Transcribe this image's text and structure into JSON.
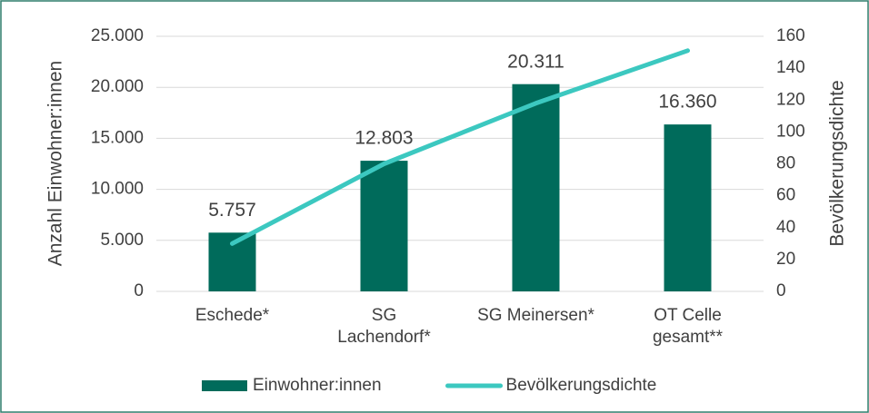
{
  "chart_data": {
    "type": "bar",
    "categories": [
      "Eschede*",
      "SG\nLachendorf*",
      "SG Meinersen*",
      "OT Celle\ngesamt**"
    ],
    "series": [
      {
        "name": "Einwohner:innen",
        "type": "bar",
        "color": "#006b5b",
        "values": [
          5757,
          12803,
          20311,
          16360
        ],
        "value_labels": [
          "5.757",
          "12.803",
          "20.311",
          "16.360"
        ]
      },
      {
        "name": "Bevölkerungsdichte",
        "type": "line",
        "axis": "y2",
        "color": "#3cc8c0",
        "values": [
          30,
          80,
          118,
          151
        ]
      }
    ],
    "ylabel": "Anzahl Einwohner:innen",
    "y2label": "Bevölkerungsdichte",
    "ylim": [
      0,
      25000
    ],
    "yticks": [
      0,
      {
        "value": 5000,
        "label": "5.000"
      },
      {
        "value": 10000,
        "label": "10.000"
      },
      {
        "value": 15000,
        "label": "15.000"
      },
      {
        "value": 20000,
        "label": "20.000"
      },
      {
        "value": 25000,
        "label": "25.000"
      }
    ],
    "y2lim": [
      0,
      160
    ],
    "y2ticks": [
      0,
      20,
      40,
      60,
      80,
      100,
      120,
      140,
      160
    ],
    "grid": true,
    "legend": "bottom"
  }
}
